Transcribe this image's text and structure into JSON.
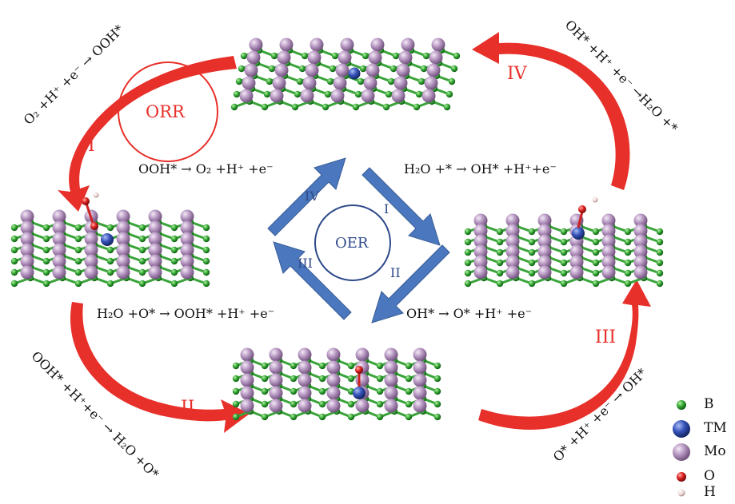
{
  "orr_cycle": {
    "center_label": "ORR",
    "steps": [
      {
        "roman": "I",
        "reaction": "O₂ +H⁺ +e⁻ → OOH*"
      },
      {
        "roman": "II",
        "reaction": "OOH* +H⁺+e⁻ → H₂O +O*"
      },
      {
        "roman": "III",
        "reaction": "O* +H⁺ +e⁻ → OH*"
      },
      {
        "roman": "IV",
        "reaction": "OH* +H⁺ +e⁻ →H₂O +*"
      }
    ],
    "arrow_color": "#e8302a"
  },
  "oer_cycle": {
    "center_label": "OER",
    "steps": [
      {
        "roman": "I",
        "reaction": "H₂O +* → OH* +H⁺+e⁻"
      },
      {
        "roman": "II",
        "reaction": "OH* → O* +H⁺ +e⁻"
      },
      {
        "roman": "III",
        "reaction": "H₂O +O* → OOH* +H⁺ +e⁻"
      },
      {
        "roman": "IV",
        "reaction": "OOH* → O₂ +H⁺ +e⁻"
      }
    ],
    "arrow_color": "#3f6fb5"
  },
  "legend": [
    {
      "label": "B",
      "color": "#2e9a2e",
      "icon": "boron-atom"
    },
    {
      "label": "TM",
      "color": "#2f4fb0",
      "icon": "transition-metal-atom"
    },
    {
      "label": "Mo",
      "color": "#b08fbd",
      "icon": "molybdenum-atom"
    },
    {
      "label": "O",
      "color": "#d42020",
      "icon": "oxygen-atom"
    },
    {
      "label": "H",
      "color": "#f0d8d8",
      "icon": "hydrogen-atom"
    }
  ]
}
